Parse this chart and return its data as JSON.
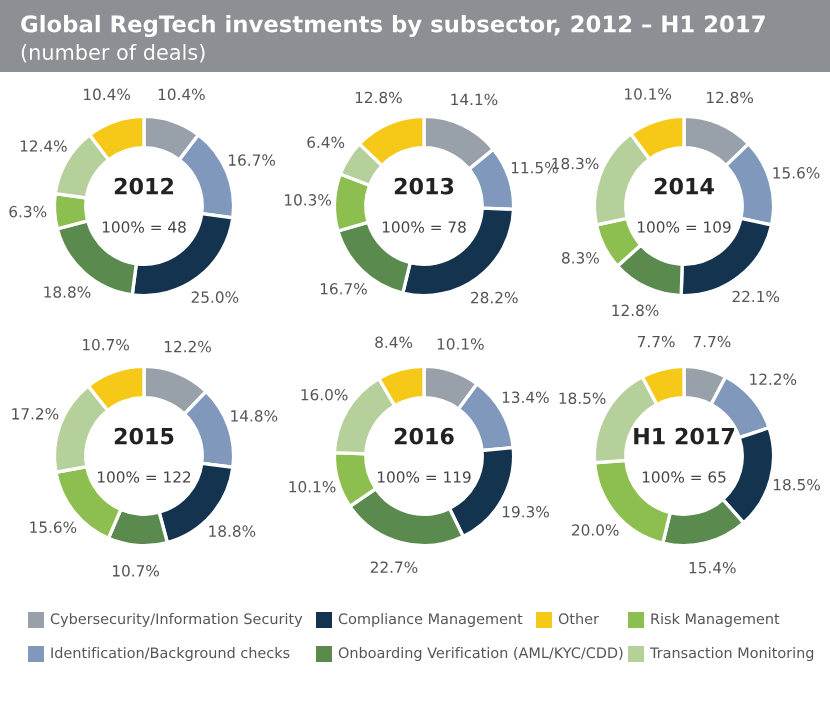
{
  "chart_data": [
    {
      "type": "donut",
      "title": "Global RegTech investments by subsector, 2012 – H1 2017",
      "subtitle": "(number of deals)",
      "legend": "bottom",
      "annotations": [
        "2012",
        "100% = 48"
      ],
      "categories": [
        "Cybersecurity/Information Security",
        "Identification/Background checks",
        "Compliance Management",
        "Onboarding Verification (AML/KYC/CDD)",
        "Risk Management",
        "Transaction Monitoring",
        "Other"
      ],
      "colors": [
        "#98a0aa",
        "#7f98bb",
        "#13334f",
        "#5a8a4e",
        "#8dbf50",
        "#b5d09a",
        "#f6c918"
      ],
      "values": [
        10.4,
        16.7,
        25.0,
        18.8,
        6.3,
        12.4,
        10.4
      ],
      "value_labels": [
        "10.4%",
        "16.7%",
        "25.0%",
        "18.8%",
        "6.3%",
        "12.4%",
        "10.4%"
      ]
    },
    {
      "type": "donut",
      "annotations": [
        "2013",
        "100% = 78"
      ],
      "categories": [
        null,
        null,
        null,
        null,
        null,
        null,
        null
      ],
      "colors": [
        "#98a0aa",
        "#7f98bb",
        "#13334f",
        "#5a8a4e",
        "#8dbf50",
        "#b5d09a",
        "#f6c918"
      ],
      "values": [
        14.1,
        11.5,
        28.2,
        16.7,
        10.3,
        6.4,
        12.8
      ],
      "value_labels": [
        "14.1%",
        "11.5%",
        "28.2%",
        "16.7%",
        "10.3%",
        "6.4%",
        "12.8%"
      ]
    },
    {
      "type": "donut",
      "annotations": [
        "2014",
        "100% = 109"
      ],
      "categories": [
        null,
        null,
        null,
        null,
        null,
        null,
        null
      ],
      "colors": [
        "#98a0aa",
        "#7f98bb",
        "#13334f",
        "#5a8a4e",
        "#8dbf50",
        "#b5d09a",
        "#f6c918"
      ],
      "values": [
        12.8,
        15.6,
        22.1,
        12.8,
        8.3,
        18.3,
        10.1
      ],
      "value_labels": [
        "12.8%",
        "15.6%",
        "22.1%",
        "12.8%",
        "8.3%",
        "18.3%",
        "10.1%"
      ]
    },
    {
      "type": "donut",
      "annotations": [
        "2015",
        "100% = 122"
      ],
      "categories": [
        null,
        null,
        null,
        null,
        null,
        null,
        null
      ],
      "colors": [
        "#98a0aa",
        "#7f98bb",
        "#13334f",
        "#5a8a4e",
        "#8dbf50",
        "#b5d09a",
        "#f6c918"
      ],
      "values": [
        12.2,
        14.8,
        18.8,
        10.7,
        15.6,
        17.2,
        10.7
      ],
      "value_labels": [
        "12.2%",
        "14.8%",
        "18.8%",
        "10.7%",
        "15.6%",
        "17.2%",
        "10.7%"
      ]
    },
    {
      "type": "donut",
      "annotations": [
        "2016",
        "100% = 119"
      ],
      "categories": [
        null,
        null,
        null,
        null,
        null,
        null,
        null
      ],
      "colors": [
        "#98a0aa",
        "#7f98bb",
        "#13334f",
        "#5a8a4e",
        "#8dbf50",
        "#b5d09a",
        "#f6c918"
      ],
      "values": [
        10.1,
        13.4,
        19.3,
        22.7,
        10.1,
        16.0,
        8.4
      ],
      "value_labels": [
        "10.1%",
        "13.4%",
        "19.3%",
        "22.7%",
        "10.1%",
        "16.0%",
        "8.4%"
      ]
    },
    {
      "type": "donut",
      "annotations": [
        "H1 2017",
        "100% = 65"
      ],
      "categories": [
        null,
        null,
        null,
        null,
        null,
        null,
        null
      ],
      "colors": [
        "#98a0aa",
        "#7f98bb",
        "#13334f",
        "#5a8a4e",
        "#8dbf50",
        "#b5d09a",
        "#f6c918"
      ],
      "values": [
        7.7,
        12.2,
        18.5,
        15.4,
        20.0,
        18.5,
        7.7
      ],
      "value_labels": [
        "7.7%",
        "12.2%",
        "18.5%",
        "15.4%",
        "20.0%",
        "18.5%",
        "7.7%"
      ]
    }
  ]
}
